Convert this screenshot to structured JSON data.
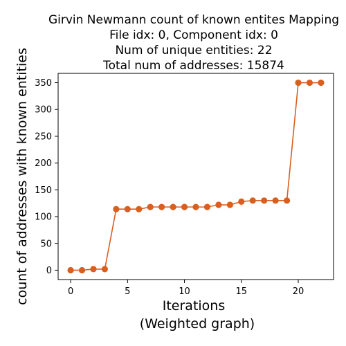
{
  "colors": {
    "series": "#d95f1e",
    "axis": "#000000",
    "background": "#ffffff"
  },
  "chart_data": {
    "type": "line",
    "title": [
      "Girvin Newmann count of known entites Mapping",
      "File idx: 0, Component idx: 0",
      "Num of unique entities: 22",
      "Total num of addresses: 15874"
    ],
    "xlabel": [
      "Iterations",
      "(Weighted graph)"
    ],
    "ylabel": "count of addresses with known entities",
    "x": [
      0,
      1,
      2,
      3,
      4,
      5,
      6,
      7,
      8,
      9,
      10,
      11,
      12,
      13,
      14,
      15,
      16,
      17,
      18,
      19,
      20,
      21,
      22
    ],
    "series": [
      {
        "name": "count",
        "values": [
          0,
          0,
          2,
          2,
          114,
          114,
          114,
          118,
          118,
          118,
          118,
          118,
          118,
          122,
          122,
          128,
          130,
          130,
          130,
          130,
          350,
          350,
          350
        ]
      }
    ],
    "xlim": [
      -1.1,
      23.1
    ],
    "ylim": [
      -17.5,
      367.5
    ],
    "xticks": [
      0,
      5,
      10,
      15,
      20
    ],
    "yticks": [
      0,
      50,
      100,
      150,
      200,
      250,
      300,
      350
    ],
    "marker": "circle",
    "grid": false,
    "legend": "none"
  }
}
